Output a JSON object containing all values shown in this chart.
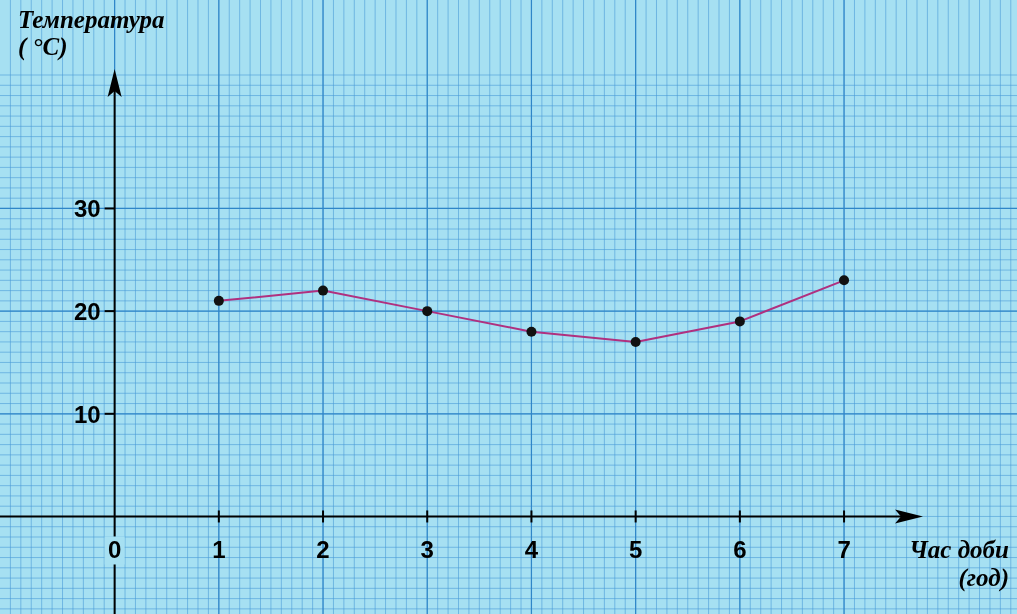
{
  "chart_data": {
    "type": "line",
    "xlabel": "Час доби\n(год)",
    "ylabel": "Температура\n( °C)",
    "x": [
      1,
      2,
      3,
      4,
      5,
      6,
      7
    ],
    "series": [
      {
        "color": "#b0307f",
        "values": [
          21,
          22,
          20,
          18,
          17,
          19,
          23
        ]
      }
    ],
    "xlim": [
      -1.1,
      7.7
    ],
    "ylim": [
      -9.5,
      43
    ],
    "xticks": [
      0,
      1,
      2,
      3,
      4,
      5,
      6,
      7
    ],
    "yticks": [
      10,
      20,
      30
    ],
    "grid": true,
    "marker": "circle",
    "line_style": "solid"
  }
}
